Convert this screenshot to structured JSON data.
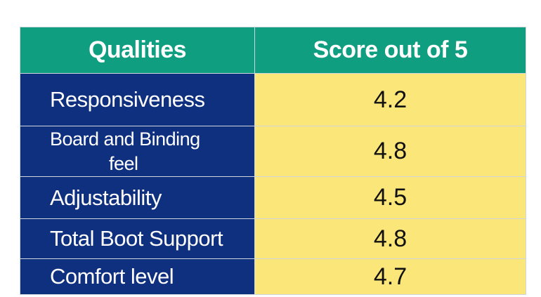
{
  "colors": {
    "header_bg": "#0f9e80",
    "quality_bg": "#0f2f7f",
    "score_bg": "#fbe679"
  },
  "table": {
    "headers": {
      "qualities": "Qualities",
      "score": "Score out of 5"
    },
    "rows": [
      {
        "quality": "Responsiveness",
        "score": "4.2"
      },
      {
        "quality_line1": "Board and Binding",
        "quality_line2": "feel",
        "score": "4.8"
      },
      {
        "quality": "Adjustability",
        "score": "4.5"
      },
      {
        "quality": "Total Boot Support",
        "score": "4.8"
      },
      {
        "quality": "Comfort level",
        "score": "4.7"
      }
    ]
  }
}
